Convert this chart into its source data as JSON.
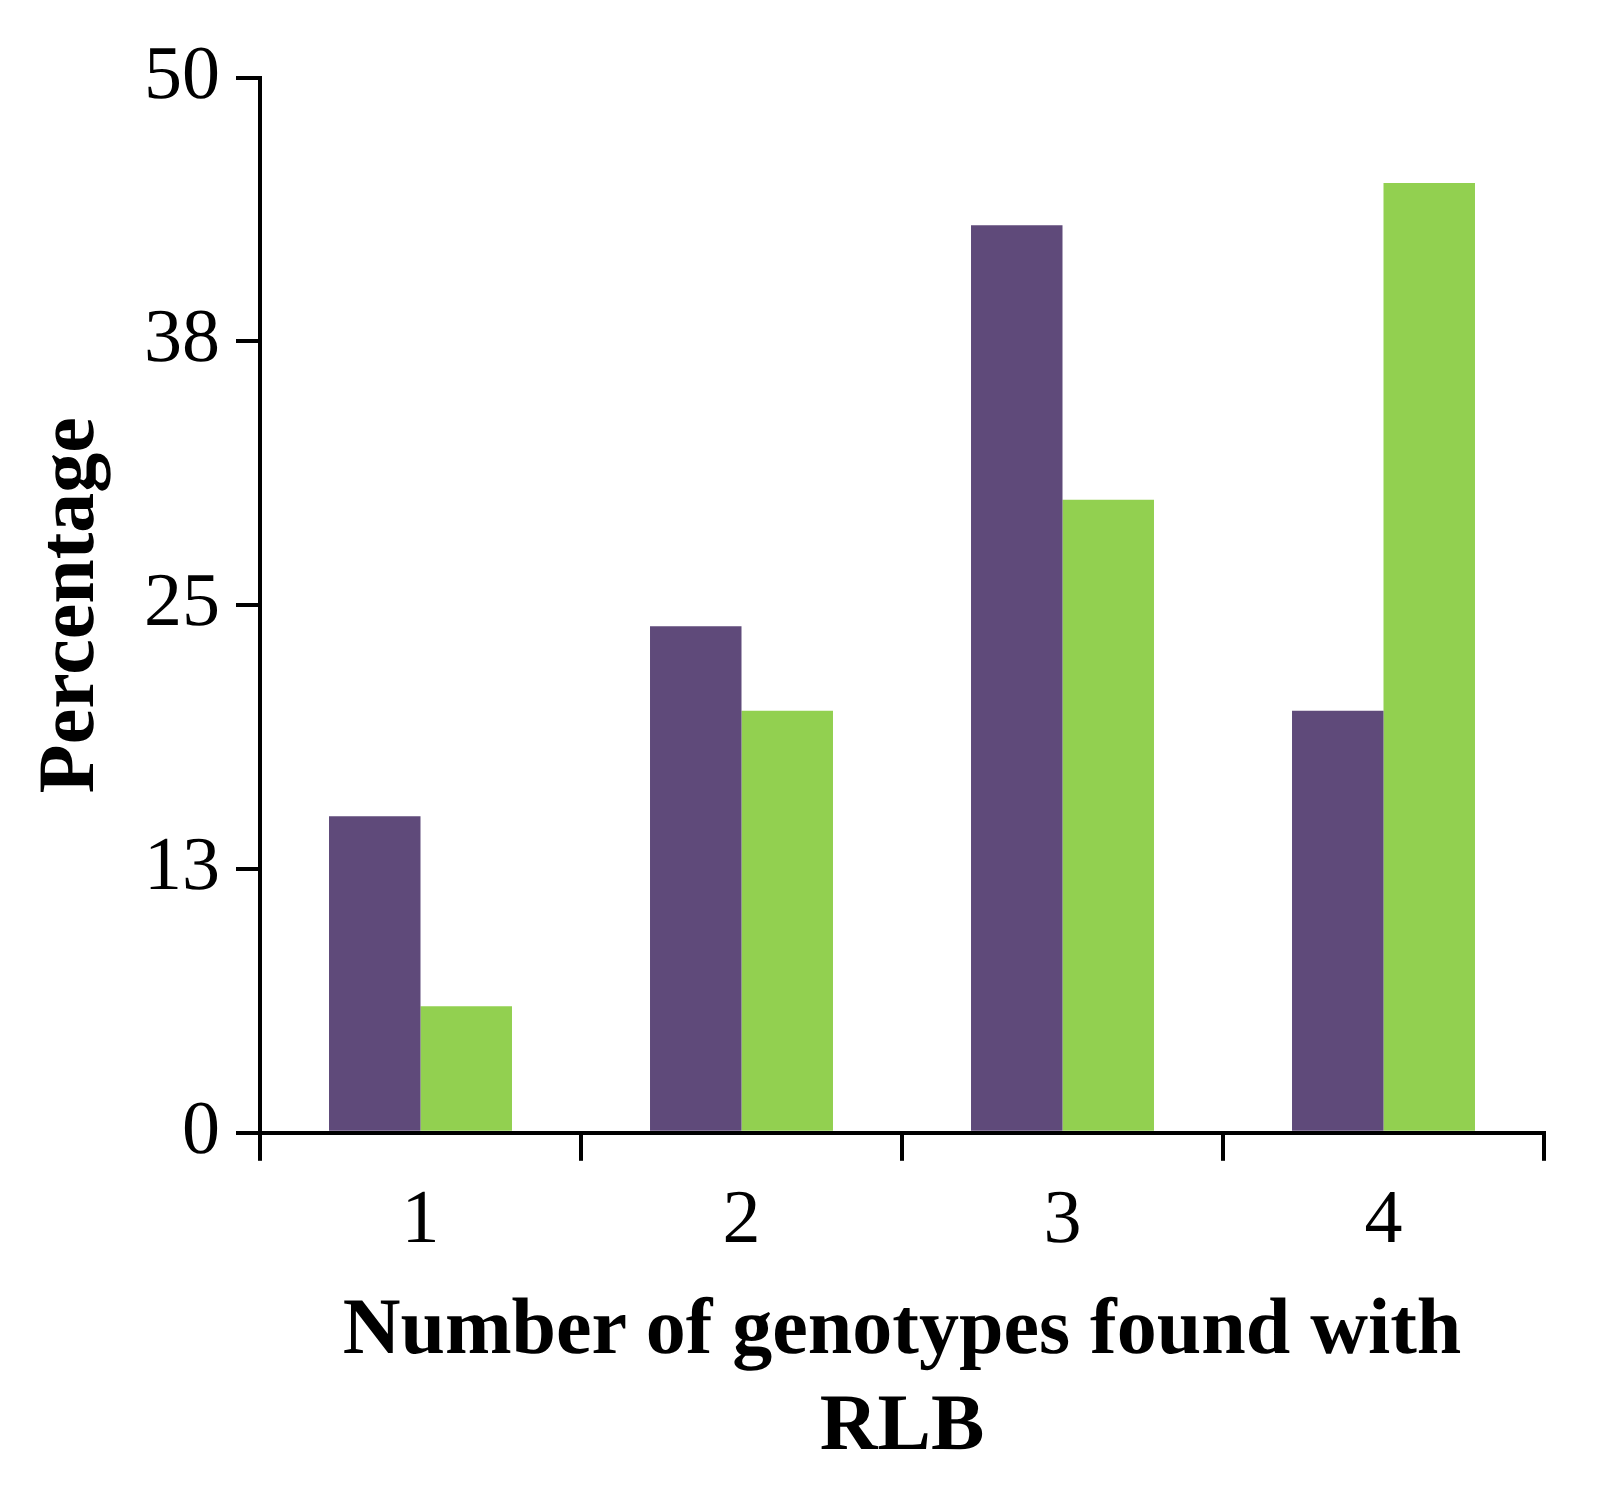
{
  "chart_data": {
    "type": "bar",
    "xlabel": "Number of genotypes found with RLB",
    "ylabel": "Percentage",
    "categories": [
      "1",
      "2",
      "3",
      "4"
    ],
    "series": [
      {
        "color": "#5f4a7a",
        "values": [
          15,
          24,
          43,
          20
        ]
      },
      {
        "color": "#92d050",
        "values": [
          6,
          20,
          30,
          45
        ]
      }
    ],
    "ylim": [
      0,
      50
    ],
    "yticks": [
      0,
      {
        "value": 12.5,
        "label": "13"
      },
      25,
      {
        "value": 37.5,
        "label": "38"
      },
      50
    ],
    "grid": false,
    "legend": false
  }
}
